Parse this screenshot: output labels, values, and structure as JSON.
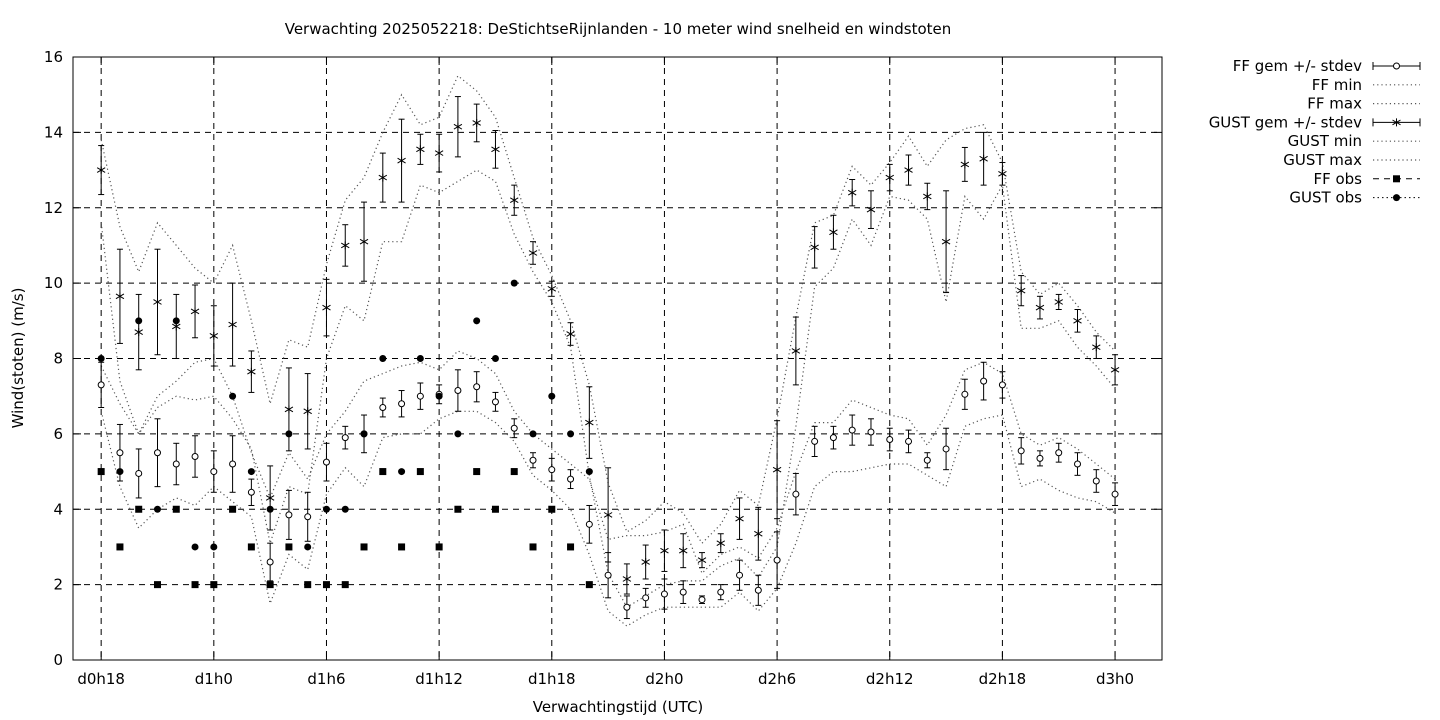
{
  "chart_data": {
    "type": "line",
    "title": "Verwachting 2025052218: DeStichtseRijnlanden - 10 meter wind snelheid en windstoten",
    "xlabel": "Verwachtingstijd (UTC)",
    "ylabel": "Wind(stoten) (m/s)",
    "ylim": [
      0,
      16
    ],
    "yticks": [
      "0",
      "2",
      "4",
      "6",
      "8",
      "10",
      "12",
      "14",
      "16"
    ],
    "xlim_hours": [
      16.5,
      74.5
    ],
    "xticks": [
      {
        "hour": 18,
        "label": "d0h18"
      },
      {
        "hour": 24,
        "label": "d1h0"
      },
      {
        "hour": 30,
        "label": "d1h6"
      },
      {
        "hour": 36,
        "label": "d1h12"
      },
      {
        "hour": 42,
        "label": "d1h18"
      },
      {
        "hour": 48,
        "label": "d2h0"
      },
      {
        "hour": 54,
        "label": "d2h6"
      },
      {
        "hour": 60,
        "label": "d2h12"
      },
      {
        "hour": 66,
        "label": "d2h18"
      },
      {
        "hour": 72,
        "label": "d3h0"
      }
    ],
    "grid": true,
    "legend_position": "outside-right",
    "legend": [
      "FF gem +/- stdev",
      "FF min",
      "FF max",
      "GUST gem +/- stdev",
      "GUST min",
      "GUST max",
      "FF obs",
      "GUST obs"
    ],
    "x_hours": [
      18,
      19,
      20,
      21,
      22,
      23,
      24,
      25,
      26,
      27,
      28,
      29,
      30,
      31,
      32,
      33,
      34,
      35,
      36,
      37,
      38,
      39,
      40,
      41,
      42,
      43,
      44,
      45,
      46,
      47,
      48,
      49,
      50,
      51,
      52,
      53,
      54,
      55,
      56,
      57,
      58,
      59,
      60,
      61,
      62,
      63,
      64,
      65,
      66,
      67,
      68,
      69,
      70,
      71,
      72
    ],
    "series": [
      {
        "key": "ff_mean",
        "mean": [
          7.3,
          5.5,
          4.95,
          5.5,
          5.2,
          5.4,
          5.0,
          5.2,
          4.45,
          2.6,
          3.85,
          3.8,
          5.25,
          5.9,
          6.0,
          6.7,
          6.8,
          7.0,
          7.05,
          7.15,
          7.25,
          6.85,
          6.15,
          5.3,
          5.05,
          4.8,
          3.6,
          2.25,
          1.4,
          1.65,
          1.75,
          1.8,
          1.6,
          1.8,
          2.25,
          1.85,
          2.65,
          4.4,
          5.8,
          5.9,
          6.1,
          6.05,
          5.85,
          5.8,
          5.3,
          5.6,
          7.05,
          7.4,
          7.3,
          5.55,
          5.35,
          5.5,
          5.2,
          4.75,
          4.4
        ],
        "stdev": [
          0.6,
          0.75,
          0.65,
          0.9,
          0.55,
          0.55,
          0.55,
          0.75,
          0.35,
          0.5,
          0.65,
          0.65,
          0.5,
          0.3,
          0.5,
          0.25,
          0.35,
          0.35,
          0.25,
          0.55,
          0.4,
          0.25,
          0.25,
          0.2,
          0.3,
          0.25,
          0.5,
          0.6,
          0.3,
          0.25,
          0.4,
          0.3,
          0.1,
          0.2,
          0.4,
          0.4,
          0.75,
          0.55,
          0.4,
          0.3,
          0.4,
          0.35,
          0.3,
          0.3,
          0.2,
          0.55,
          0.4,
          0.5,
          0.35,
          0.35,
          0.2,
          0.25,
          0.3,
          0.3,
          0.3
        ]
      },
      {
        "key": "ff_min",
        "values": [
          6.6,
          4.6,
          3.5,
          4.0,
          4.3,
          4.1,
          4.6,
          4.2,
          3.8,
          1.5,
          2.8,
          2.4,
          4.4,
          5.1,
          4.6,
          5.9,
          6.0,
          6.0,
          6.4,
          6.6,
          6.6,
          6.3,
          5.8,
          4.9,
          4.5,
          4.0,
          2.8,
          1.3,
          0.9,
          1.2,
          1.4,
          1.4,
          1.4,
          1.4,
          1.8,
          1.3,
          1.9,
          3.1,
          4.6,
          5.0,
          5.0,
          5.1,
          5.2,
          5.2,
          4.9,
          4.6,
          6.2,
          6.4,
          6.5,
          4.6,
          4.8,
          4.5,
          4.3,
          4.2,
          3.9
        ]
      },
      {
        "key": "ff_max",
        "values": [
          7.8,
          6.8,
          6.0,
          7.0,
          7.4,
          7.9,
          8.0,
          7.0,
          5.5,
          4.3,
          5.5,
          4.8,
          6.0,
          6.6,
          7.4,
          7.6,
          7.8,
          7.9,
          7.7,
          8.2,
          8.0,
          7.6,
          6.6,
          6.0,
          5.6,
          5.2,
          4.8,
          3.2,
          3.3,
          3.3,
          3.4,
          3.6,
          2.3,
          2.8,
          3.0,
          2.7,
          3.5,
          5.0,
          6.3,
          6.3,
          6.9,
          6.7,
          6.5,
          6.4,
          5.7,
          6.5,
          7.7,
          7.9,
          7.6,
          6.0,
          5.7,
          5.9,
          5.6,
          5.2,
          4.8
        ]
      },
      {
        "key": "gust_mean",
        "mean": [
          13.0,
          9.65,
          8.7,
          9.5,
          8.85,
          9.25,
          8.6,
          8.9,
          7.65,
          4.3,
          6.65,
          6.6,
          9.35,
          11.0,
          11.1,
          12.8,
          13.25,
          13.55,
          13.45,
          14.15,
          14.25,
          13.55,
          12.2,
          10.8,
          9.85,
          8.65,
          6.3,
          3.85,
          2.15,
          2.6,
          2.9,
          2.9,
          2.65,
          3.1,
          3.75,
          3.35,
          5.05,
          8.2,
          10.95,
          11.35,
          12.4,
          11.95,
          12.8,
          13.0,
          12.3,
          11.1,
          13.15,
          13.3,
          12.9,
          9.8,
          9.35,
          9.5,
          9.0,
          8.3,
          7.7
        ]
      },
      {
        "key": "gust_stdev",
        "values": [
          0.65,
          1.25,
          1.0,
          1.4,
          0.85,
          0.7,
          0.8,
          1.1,
          0.55,
          0.85,
          1.1,
          1.0,
          0.75,
          0.55,
          1.05,
          0.65,
          1.1,
          0.4,
          0.5,
          0.8,
          0.5,
          0.5,
          0.4,
          0.3,
          0.2,
          0.3,
          0.95,
          1.25,
          0.4,
          0.45,
          0.55,
          0.45,
          0.2,
          0.25,
          0.55,
          0.7,
          1.3,
          0.9,
          0.55,
          0.45,
          0.35,
          0.5,
          0.35,
          0.4,
          0.35,
          1.35,
          0.45,
          0.7,
          0.3,
          0.4,
          0.3,
          0.2,
          0.3,
          0.3,
          0.4
        ]
      },
      {
        "key": "gust_min",
        "values": [
          11.6,
          7.4,
          6.0,
          6.7,
          7.0,
          6.9,
          7.0,
          6.4,
          5.6,
          3.1,
          4.6,
          4.4,
          8.0,
          9.4,
          9.0,
          11.1,
          11.1,
          12.6,
          12.4,
          12.7,
          13.0,
          12.7,
          11.3,
          10.3,
          9.5,
          8.3,
          4.9,
          2.3,
          1.4,
          1.7,
          2.0,
          2.1,
          2.1,
          2.5,
          2.7,
          2.2,
          3.0,
          6.2,
          9.9,
          10.4,
          11.7,
          11.0,
          12.3,
          12.2,
          11.7,
          9.5,
          12.3,
          11.7,
          12.6,
          8.8,
          8.8,
          9.0,
          8.3,
          7.8,
          7.2
        ]
      },
      {
        "key": "gust_max",
        "values": [
          13.8,
          11.5,
          10.3,
          11.6,
          11.0,
          10.4,
          10.0,
          11.0,
          9.0,
          6.8,
          8.5,
          8.3,
          10.5,
          12.2,
          12.8,
          14.0,
          15.0,
          14.2,
          14.4,
          15.5,
          15.1,
          14.4,
          12.8,
          11.2,
          10.2,
          9.0,
          7.3,
          4.7,
          3.4,
          3.7,
          4.2,
          3.9,
          3.1,
          3.6,
          4.5,
          4.1,
          6.4,
          9.1,
          11.6,
          11.8,
          13.1,
          12.6,
          13.2,
          13.9,
          13.1,
          13.8,
          14.1,
          14.2,
          13.2,
          10.3,
          9.7,
          10.0,
          9.4,
          8.7,
          8.2
        ]
      },
      {
        "key": "ff_obs",
        "x": [
          18,
          19,
          20,
          21,
          22,
          23,
          24,
          25,
          26,
          27,
          28,
          29,
          30,
          31,
          32,
          33,
          34,
          35,
          36,
          37,
          38,
          39,
          40,
          41,
          42,
          43,
          44
        ],
        "values": [
          5,
          3,
          4,
          2,
          4,
          2,
          2,
          4,
          3,
          2,
          3,
          2,
          2,
          2,
          3,
          5,
          3,
          5,
          3,
          4,
          5,
          4,
          5,
          3,
          4,
          3,
          2
        ]
      },
      {
        "key": "gust_obs",
        "x": [
          18,
          19,
          20,
          21,
          22,
          23,
          24,
          25,
          26,
          27,
          28,
          29,
          30,
          31,
          32,
          33,
          34,
          35,
          36,
          37,
          38,
          39,
          40,
          41,
          42,
          43,
          44
        ],
        "values": [
          8,
          5,
          9,
          4,
          9,
          3,
          3,
          7,
          5,
          4,
          6,
          3,
          4,
          4,
          6,
          8,
          5,
          8,
          7,
          6,
          9,
          8,
          10,
          6,
          7,
          6,
          5
        ]
      }
    ]
  }
}
